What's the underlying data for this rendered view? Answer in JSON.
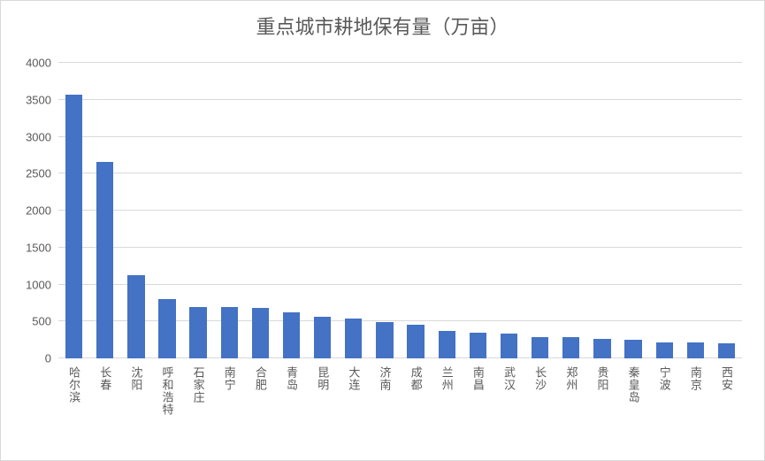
{
  "chart": {
    "type": "bar",
    "title": "重点城市耕地保有量（万亩）",
    "title_fontsize": 22,
    "title_color": "#595959",
    "background_color": "#ffffff",
    "grid_color": "#d9d9d9",
    "axis_label_color": "#595959",
    "axis_fontsize": 13,
    "xlabel_fontsize": 13,
    "bar_color": "#4472c4",
    "bar_width_ratio": 0.55,
    "ylim": [
      0,
      4000
    ],
    "ytick_step": 500,
    "yticks": [
      0,
      500,
      1000,
      1500,
      2000,
      2500,
      3000,
      3500,
      4000
    ],
    "categories": [
      "哈尔滨",
      "长春",
      "沈阳",
      "呼和浩特",
      "石家庄",
      "南宁",
      "合肥",
      "青岛",
      "昆明",
      "大连",
      "济南",
      "成都",
      "兰州",
      "南昌",
      "武汉",
      "长沙",
      "郑州",
      "贵阳",
      "秦皇岛",
      "宁波",
      "南京",
      "西安"
    ],
    "values": [
      3570,
      2660,
      1120,
      800,
      700,
      690,
      680,
      620,
      560,
      540,
      490,
      460,
      370,
      350,
      340,
      290,
      290,
      260,
      250,
      210,
      210,
      200
    ]
  }
}
